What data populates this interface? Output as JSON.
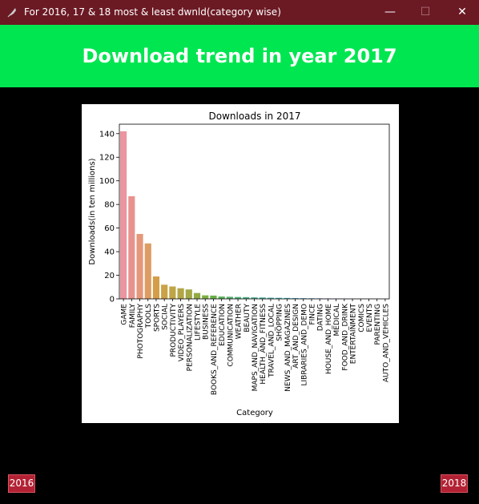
{
  "window": {
    "title": "For 2016, 17 & 18 most & least dwnld(category wise)",
    "minimize_glyph": "—",
    "maximize_glyph": "☐",
    "close_glyph": "✕",
    "icon": "feather-icon"
  },
  "banner": {
    "heading": "Download trend in year 2017",
    "background": "#00e650"
  },
  "navigation": {
    "prev_label": "2016",
    "next_label": "2018",
    "button_color": "#b22234"
  },
  "chart_data": {
    "type": "bar",
    "title": "Downloads in 2017",
    "xlabel": "Category",
    "ylabel": "Downloads(in ten millions)",
    "ylim": [
      0,
      148
    ],
    "yticks": [
      0,
      20,
      40,
      60,
      80,
      100,
      120,
      140
    ],
    "grid": false,
    "categories": [
      "GAME",
      "FAMILY",
      "PHOTOGRAPHY",
      "TOOLS",
      "SPORTS",
      "SOCIAL",
      "PRODUCTIVITY",
      "VIDEO_PLAYERS",
      "PERSONALIZATION",
      "LIFESTYLE",
      "BUSINESS",
      "BOOKS_AND_REFERENCE",
      "EDUCATION",
      "COMMUNICATION",
      "WEATHER",
      "BEAUTY",
      "MAPS_AND_NAVIGATION",
      "HEALTH_AND_FITNESS",
      "TRAVEL_AND_LOCAL",
      "SHOPPING",
      "NEWS_AND_MAGAZINES",
      "ART_AND_DESIGN",
      "LIBRARIES_AND_DEMO",
      "FINCE",
      "DATING",
      "HOUSE_AND_HOME",
      "MEDICAL",
      "FOOD_AND_DRINK",
      "ENTERTAINMENT",
      "COMICS",
      "EVENTS",
      "PARENTING",
      "AUTO_AND_VEHICLES"
    ],
    "values": [
      142,
      87,
      55,
      47,
      19,
      12,
      10.5,
      9,
      8,
      5,
      3,
      2.8,
      2,
      1.8,
      1.6,
      1.5,
      1.3,
      1.2,
      1.0,
      0.9,
      0.8,
      0.7,
      0.6,
      0.5,
      0.45,
      0.4,
      0.35,
      0.3,
      0.25,
      0.2,
      0.15,
      0.1,
      0.05
    ],
    "colors": [
      "#ea95a0",
      "#e8928f",
      "#e5977a",
      "#dd9c62",
      "#d49e49",
      "#caa247",
      "#bea547",
      "#b1a646",
      "#a2a945",
      "#91aa45",
      "#7eaf45",
      "#66b046",
      "#5bb05c",
      "#55b06c",
      "#51b07b",
      "#4eb086",
      "#4cb091",
      "#4ab09c",
      "#49b1a6",
      "#49b1b0",
      "#4ab2bc",
      "#4db1c9",
      "#56b0d6",
      "#69ace2",
      "#82a8ea",
      "#97a4ee",
      "#a8a1ee",
      "#b79ded",
      "#c69aec",
      "#d696ea",
      "#e292df",
      "#e891cf",
      "#ec92bf"
    ]
  }
}
